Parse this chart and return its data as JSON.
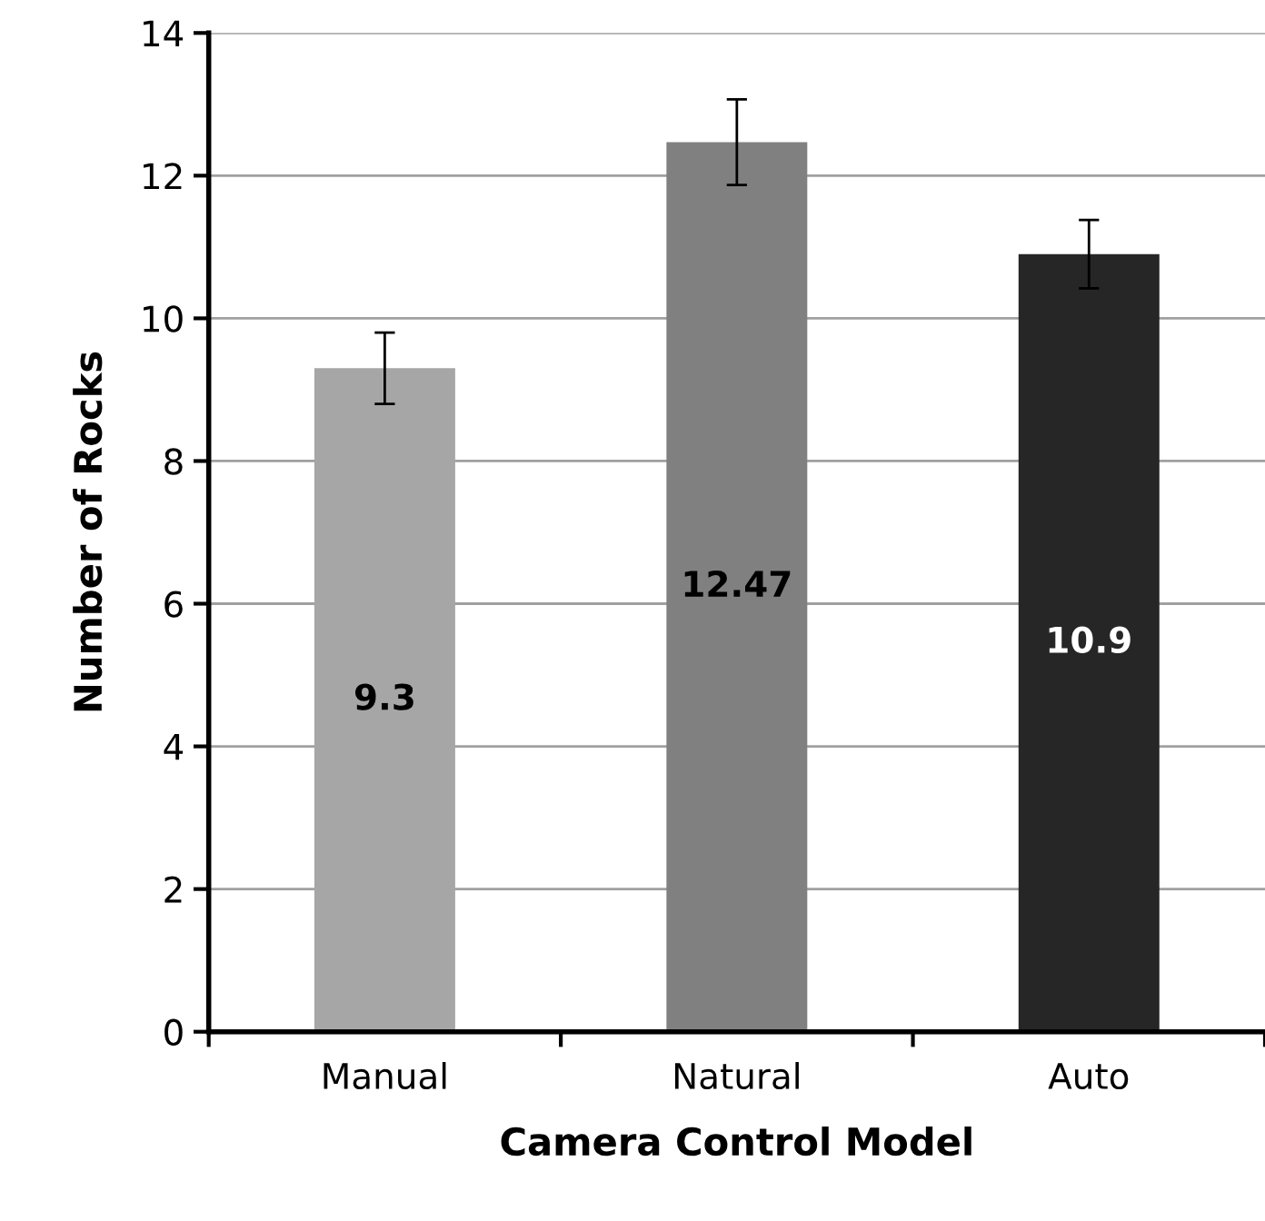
{
  "chart_data": {
    "type": "bar",
    "xlabel": "Camera Control Model",
    "ylabel": "Number of Rocks",
    "categories": [
      "Manual",
      "Natural",
      "Auto"
    ],
    "values": [
      9.3,
      12.47,
      10.9
    ],
    "colors": [
      "#a6a6a6",
      "#808080",
      "#262626"
    ],
    "errors": [
      0.5,
      0.6,
      0.48
    ],
    "ylim": [
      0,
      14
    ],
    "yticks": [
      0,
      2,
      4,
      6,
      8,
      10,
      12,
      14
    ],
    "grid": "y",
    "legend": false,
    "data_labels": true
  }
}
